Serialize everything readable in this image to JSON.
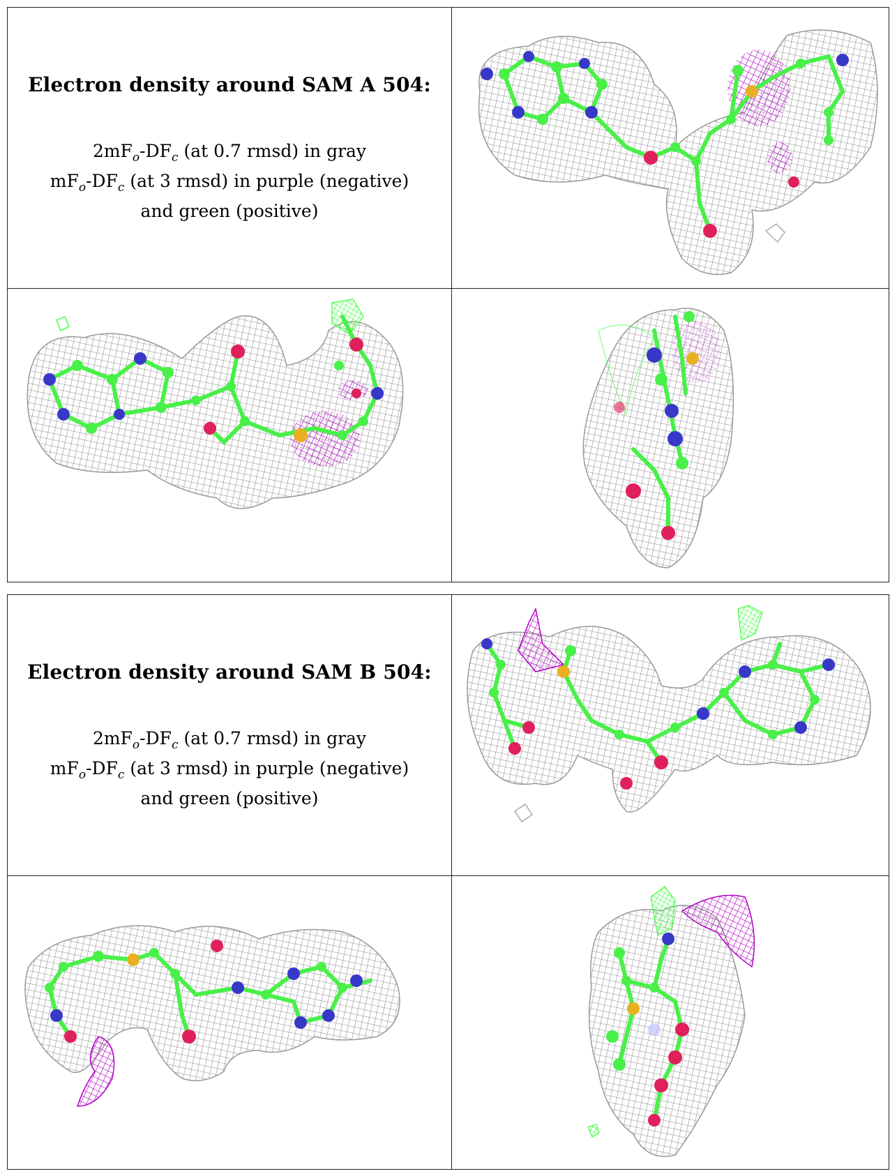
{
  "panels": [
    {
      "heading": "Electron density around SAM A 504:",
      "legend_gray": {
        "pre": "2mF",
        "sub1": "o",
        "mid": "-DF",
        "sub2": "c",
        "post": " (at 0.7 rmsd) in gray"
      },
      "legend_diff": {
        "pre": "mF",
        "sub1": "o",
        "mid": "-DF",
        "sub2": "c",
        "post": " (at 3 rmsd) in purple (negative)"
      },
      "legend_tail": "and green (positive)"
    },
    {
      "heading": "Electron density around SAM B 504:",
      "legend_gray": {
        "pre": "2mF",
        "sub1": "o",
        "mid": "-DF",
        "sub2": "c",
        "post": " (at 0.7 rmsd) in gray"
      },
      "legend_diff": {
        "pre": "mF",
        "sub1": "o",
        "mid": "-DF",
        "sub2": "c",
        "post": " (at 3 rmsd) in purple (negative)"
      },
      "legend_tail": "and green (positive)"
    }
  ],
  "colors": {
    "mesh_gray": "#8a8a8a",
    "mesh_negative": "#b400c8",
    "mesh_positive": "#3cff3c",
    "carbon": "#48f048",
    "nitrogen": "#3838c8",
    "oxygen": "#e0205a",
    "sulfur": "#e8b020"
  }
}
